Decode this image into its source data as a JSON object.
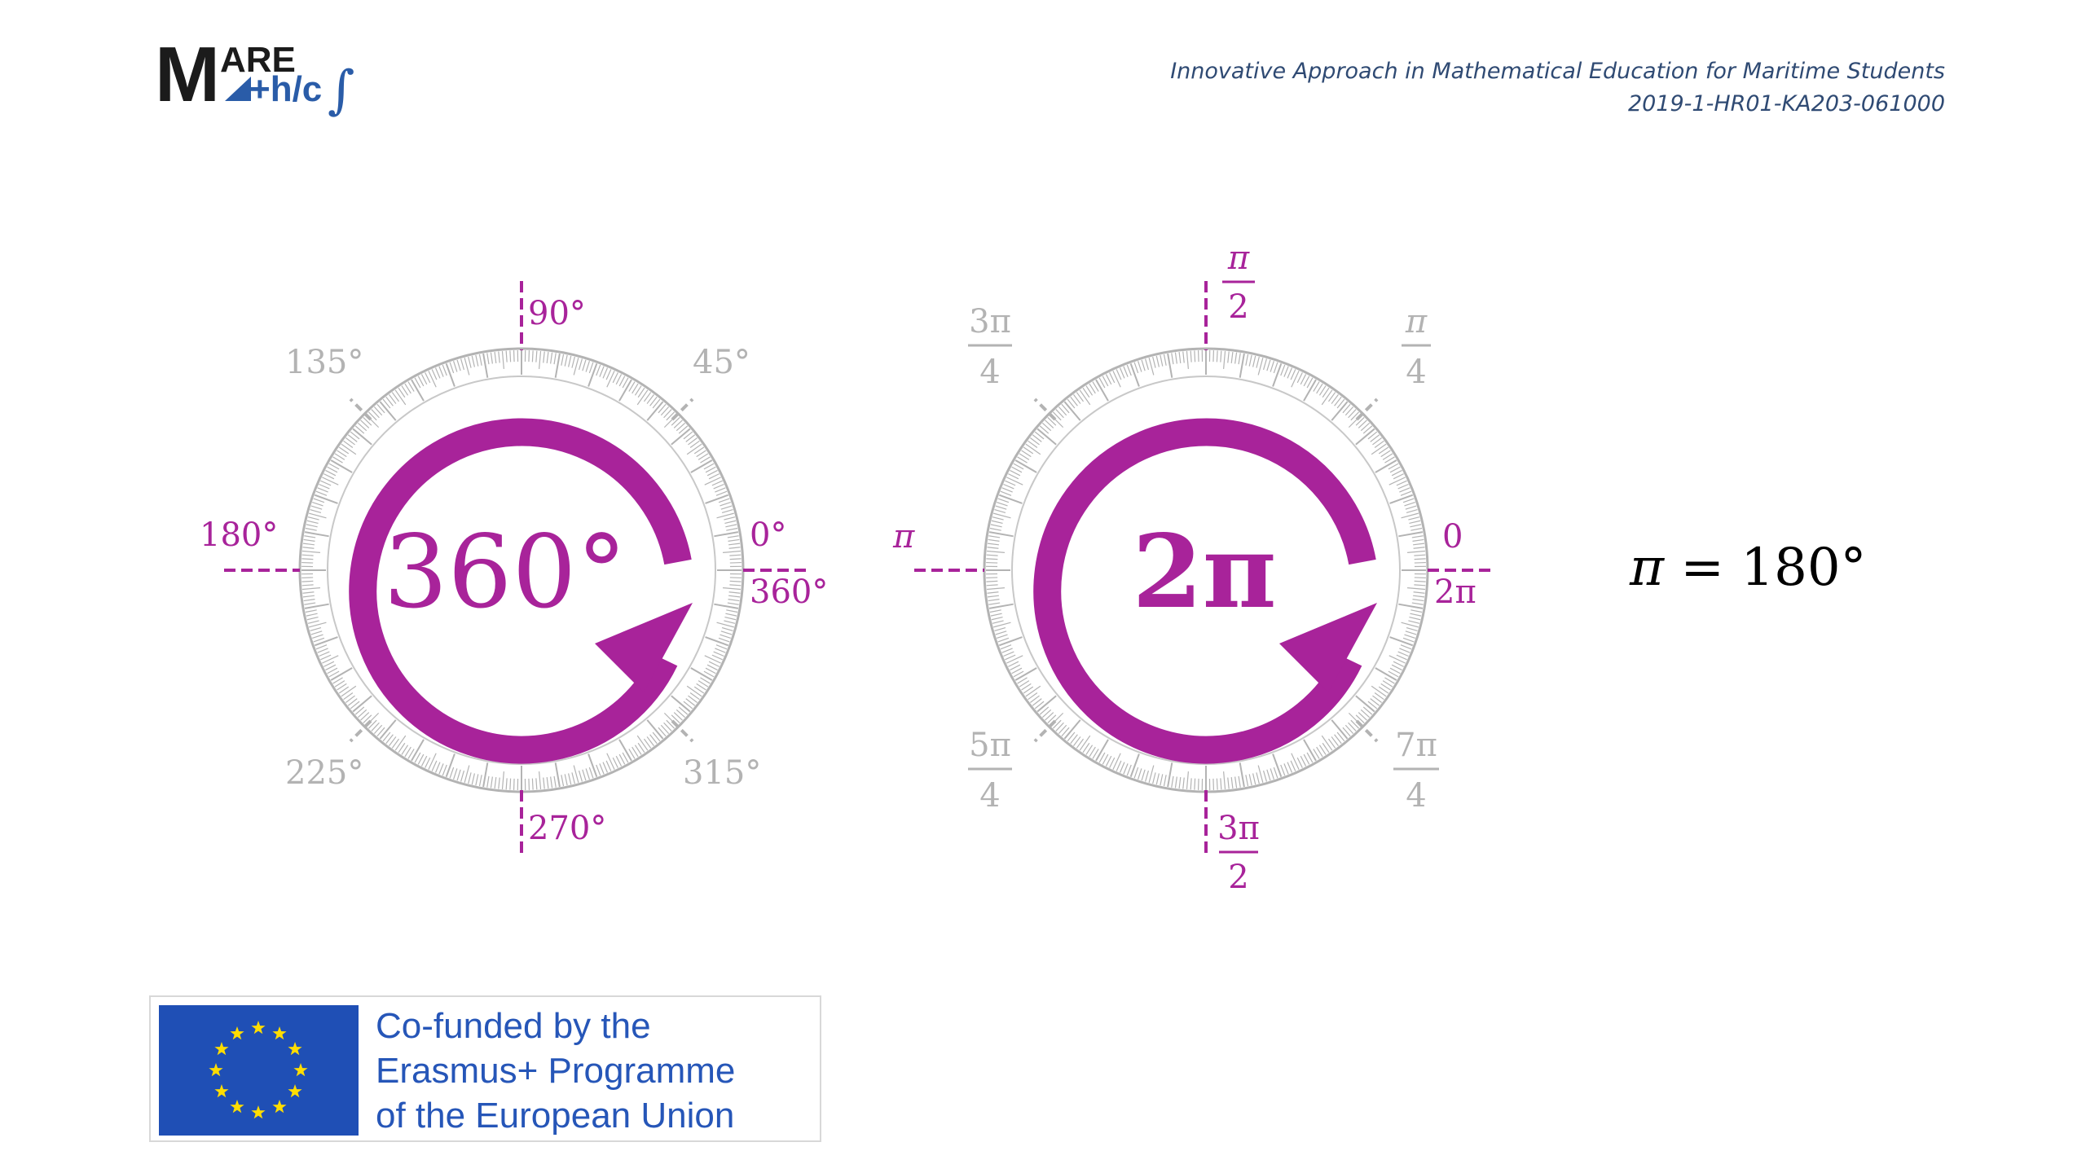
{
  "logo": {
    "top_word": "ARE",
    "big_letter": "M",
    "bottom_word": "+h/c",
    "integral": "∫"
  },
  "header": {
    "project_title": "Innovative Approach in Mathematical Education for Maritime Students",
    "project_code": "2019-1-HR01-KA203-061000"
  },
  "degrees_dial": {
    "center_label": "360°",
    "labels": {
      "d0": "0°",
      "d360": "360°",
      "d45": "45°",
      "d90": "90°",
      "d135": "135°",
      "d180": "180°",
      "d225": "225°",
      "d270": "270°",
      "d315": "315°"
    }
  },
  "radians_dial": {
    "center_label": "2π",
    "labels": {
      "r0": "0",
      "r2pi": "2π",
      "r_pi": "π",
      "r_pi_over_2": {
        "num": "π",
        "den": "2"
      },
      "r_pi_over_4": {
        "num": "π",
        "den": "4"
      },
      "r_3pi_over_4": {
        "num": "3π",
        "den": "4"
      },
      "r_5pi_over_4": {
        "num": "5π",
        "den": "4"
      },
      "r_3pi_over_2": {
        "num": "3π",
        "den": "2"
      },
      "r_7pi_over_4": {
        "num": "7π",
        "den": "4"
      }
    }
  },
  "equation": {
    "pi": "π",
    "rest": " = 180°"
  },
  "eu_banner": {
    "line1": "Co-funded by the",
    "line2": "Erasmus+ Programme",
    "line3": "of the European Union"
  },
  "colors": {
    "accent": "#a8239a",
    "gray": "#b3b3b3",
    "logo_dark": "#1b1b1b",
    "logo_blue": "#2a5ca8",
    "eu_blue": "#1f4fb5",
    "eu_star": "#ffdd00"
  }
}
